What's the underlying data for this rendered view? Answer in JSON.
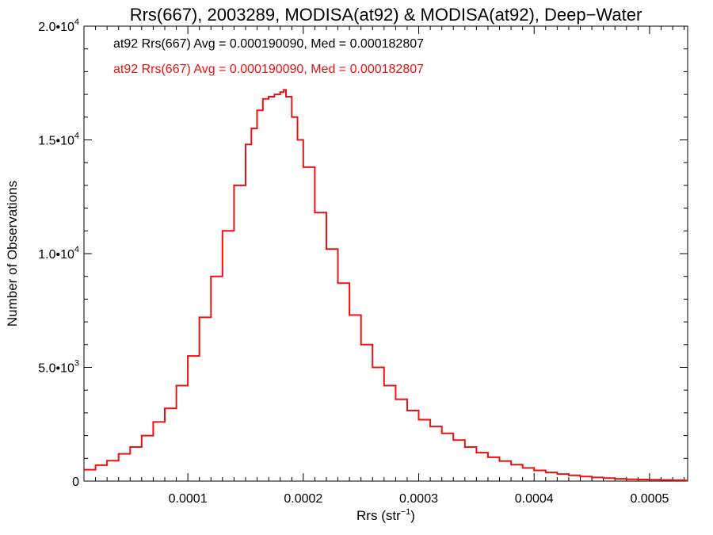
{
  "chart_data": {
    "type": "line",
    "title": "Rrs(667), 2003289, MODISA(at92) & MODISA(at92), Deep−Water",
    "xlabel": "Rrs (str",
    "xlabel_sup": "−1",
    "xlabel_close": ")",
    "ylabel": "Number of Observations",
    "xlim": [
      1e-05,
      0.000533
    ],
    "ylim": [
      0,
      20000
    ],
    "x_ticks": [
      {
        "value": 0.0001,
        "label": "0.0001"
      },
      {
        "value": 0.0002,
        "label": "0.0002"
      },
      {
        "value": 0.0003,
        "label": "0.0003"
      },
      {
        "value": 0.0004,
        "label": "0.0004"
      },
      {
        "value": 0.0005,
        "label": "0.0005"
      }
    ],
    "y_ticks": [
      {
        "value": 0,
        "label": "0",
        "sup": ""
      },
      {
        "value": 5000,
        "label": "5.0•10",
        "sup": "3"
      },
      {
        "value": 10000,
        "label": "1.0•10",
        "sup": "4"
      },
      {
        "value": 15000,
        "label": "1.5•10",
        "sup": "4"
      },
      {
        "value": 20000,
        "label": "2.0•10",
        "sup": "4"
      }
    ],
    "legend": [
      {
        "text": "at92 Rrs(667) Avg = 0.000190090, Med = 0.000182807",
        "color": "#000000"
      },
      {
        "text": "at92 Rrs(667) Avg = 0.000190090, Med = 0.000182807",
        "color": "#ee1111"
      }
    ],
    "legend_position": "top-left",
    "series_color": "#ee1111",
    "step": true,
    "series": [
      {
        "x": [
          1e-05,
          2e-05,
          3e-05,
          4e-05,
          5e-05,
          6e-05,
          7e-05,
          8e-05,
          9e-05,
          0.0001,
          0.00011,
          0.00012,
          0.00013,
          0.00014,
          0.00015,
          0.000155,
          0.00016,
          0.000165,
          0.00017,
          0.000175,
          0.00018,
          0.000183,
          0.000185,
          0.00019,
          0.000195,
          0.0002,
          0.00021,
          0.00022,
          0.00023,
          0.00024,
          0.00025,
          0.00026,
          0.00027,
          0.00028,
          0.00029,
          0.0003,
          0.00031,
          0.00032,
          0.00033,
          0.00034,
          0.00035,
          0.00036,
          0.00037,
          0.00038,
          0.00039,
          0.0004,
          0.00041,
          0.00042,
          0.00043,
          0.00044,
          0.00045,
          0.00046,
          0.00047,
          0.00048,
          0.00049,
          0.0005,
          0.00051,
          0.00052,
          0.00053
        ],
        "y": [
          500,
          700,
          900,
          1200,
          1500,
          2000,
          2600,
          3200,
          4200,
          5500,
          7200,
          9000,
          11000,
          13000,
          14800,
          15500,
          16300,
          16800,
          16900,
          17000,
          17100,
          17200,
          16900,
          16000,
          15000,
          13800,
          11800,
          10200,
          8700,
          7300,
          6000,
          5000,
          4200,
          3600,
          3100,
          2700,
          2400,
          2100,
          1800,
          1500,
          1250,
          1050,
          880,
          720,
          580,
          470,
          380,
          310,
          250,
          200,
          160,
          130,
          100,
          80,
          70,
          60,
          50,
          40,
          30
        ]
      }
    ]
  }
}
